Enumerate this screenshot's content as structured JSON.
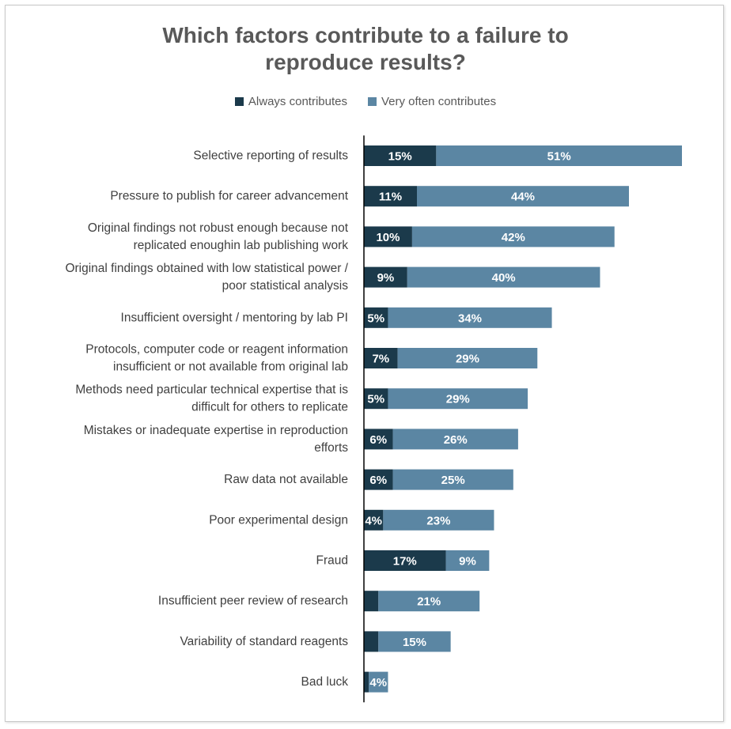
{
  "chart_data": {
    "type": "bar",
    "orientation": "horizontal",
    "stacked": true,
    "title": "Which factors contribute to a failure to reproduce results?",
    "legend_position": "top",
    "categories": [
      "Selective reporting of results",
      "Pressure to publish for career advancement",
      "Original findings not robust enough because not replicated enoughin lab publishing work",
      "Original findings obtained with low statistical power / poor statistical analysis",
      "Insufficient oversight / mentoring by lab PI",
      "Protocols, computer code or reagent information insufficient or not available from original lab",
      "Methods need particular technical expertise that is difficult for others to replicate",
      "Mistakes or inadequate expertise in reproduction efforts",
      "Raw data not available",
      "Poor experimental design",
      "Fraud",
      "Insufficient peer review of research",
      "Variability of standard reagents",
      "Bad luck"
    ],
    "category_lines": [
      [
        "Selective reporting of results"
      ],
      [
        "Pressure to publish for career advancement"
      ],
      [
        "Original findings not robust enough because not",
        "replicated enoughin lab publishing work"
      ],
      [
        "Original findings obtained with low statistical power /",
        "poor statistical analysis"
      ],
      [
        "Insufficient oversight / mentoring by lab PI"
      ],
      [
        "Protocols, computer code or reagent information",
        "insufficient or not available from original lab"
      ],
      [
        "Methods need particular technical expertise that is",
        "difficult for others to replicate"
      ],
      [
        "Mistakes or inadequate expertise in reproduction",
        "efforts"
      ],
      [
        "Raw data not available"
      ],
      [
        "Poor experimental design"
      ],
      [
        "Fraud"
      ],
      [
        "Insufficient peer review of research"
      ],
      [
        "Variability of standard reagents"
      ],
      [
        "Bad luck"
      ]
    ],
    "series": [
      {
        "name": "Always contributes",
        "color": "#1b3a4b",
        "values": [
          15,
          11,
          10,
          9,
          5,
          7,
          5,
          6,
          6,
          4,
          17,
          3,
          3,
          1
        ],
        "labels": [
          "15%",
          "11%",
          "10%",
          "9%",
          "5%",
          "7%",
          "5%",
          "6%",
          "6%",
          "4%",
          "17%",
          "",
          "",
          ""
        ]
      },
      {
        "name": "Very often contributes",
        "color": "#5b86a3",
        "values": [
          51,
          44,
          42,
          40,
          34,
          29,
          29,
          26,
          25,
          23,
          9,
          21,
          15,
          4
        ],
        "labels": [
          "51%",
          "44%",
          "42%",
          "40%",
          "34%",
          "29%",
          "29%",
          "26%",
          "25%",
          "23%",
          "9%",
          "21%",
          "15%",
          "4%"
        ]
      }
    ],
    "xlim": [
      0,
      70
    ],
    "grid": false,
    "xaxis_visible": false
  }
}
